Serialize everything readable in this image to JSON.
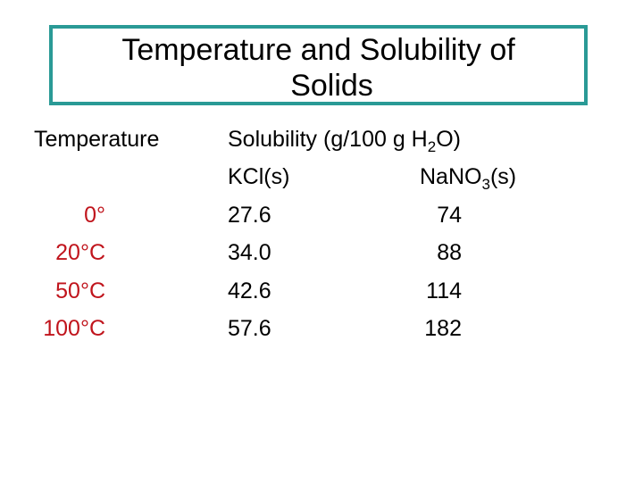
{
  "title": {
    "line1": "Temperature and Solubility of",
    "line2": "Solids"
  },
  "headers": {
    "temperature": "Temperature",
    "solubility_prefix": "Solubility (g/100 g H",
    "solubility_sub": "2",
    "solubility_suffix": "O)",
    "kcl": "KCl(s)",
    "nano3_prefix": "NaNO",
    "nano3_sub": "3",
    "nano3_suffix": "(s)"
  },
  "rows": [
    {
      "temp": "0°",
      "kcl": "27.6",
      "nano3": "74"
    },
    {
      "temp": "20°C",
      "kcl": "34.0",
      "nano3": "88"
    },
    {
      "temp": "50°C",
      "kcl": "42.6",
      "nano3": "114"
    },
    {
      "temp": "100°C",
      "kcl": "57.6",
      "nano3": "182"
    }
  ],
  "colors": {
    "title_border": "#2a9a96",
    "temperature_values": "#c0141c"
  }
}
